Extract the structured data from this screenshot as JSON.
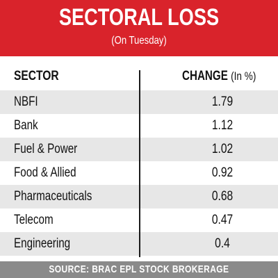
{
  "title": "SECTORAL LOSS",
  "subtitle": "(On Tuesday)",
  "table": {
    "header_sector": "SECTOR",
    "header_change": "CHANGE",
    "header_unit": "(In %)"
  },
  "footer": "SOURCE: BRAC EPL STOCK BROKERAGE",
  "colors": {
    "banner": "#d9232b",
    "row_shade": "#e7e7e7",
    "footer": "#8a8a8a"
  },
  "chart_data": {
    "type": "table",
    "title": "SECTORAL LOSS",
    "subtitle": "(On Tuesday)",
    "columns": [
      "SECTOR",
      "CHANGE (In %)"
    ],
    "rows": [
      {
        "sector": "NBFI",
        "change": "1.79"
      },
      {
        "sector": "Bank",
        "change": "1.12"
      },
      {
        "sector": "Fuel & Power",
        "change": "1.02"
      },
      {
        "sector": "Food & Allied",
        "change": "0.92"
      },
      {
        "sector": "Pharmaceuticals",
        "change": "0.68"
      },
      {
        "sector": "Telecom",
        "change": "0.47"
      },
      {
        "sector": "Engineering",
        "change": "0.4"
      }
    ],
    "source": "SOURCE: BRAC EPL STOCK BROKERAGE"
  }
}
